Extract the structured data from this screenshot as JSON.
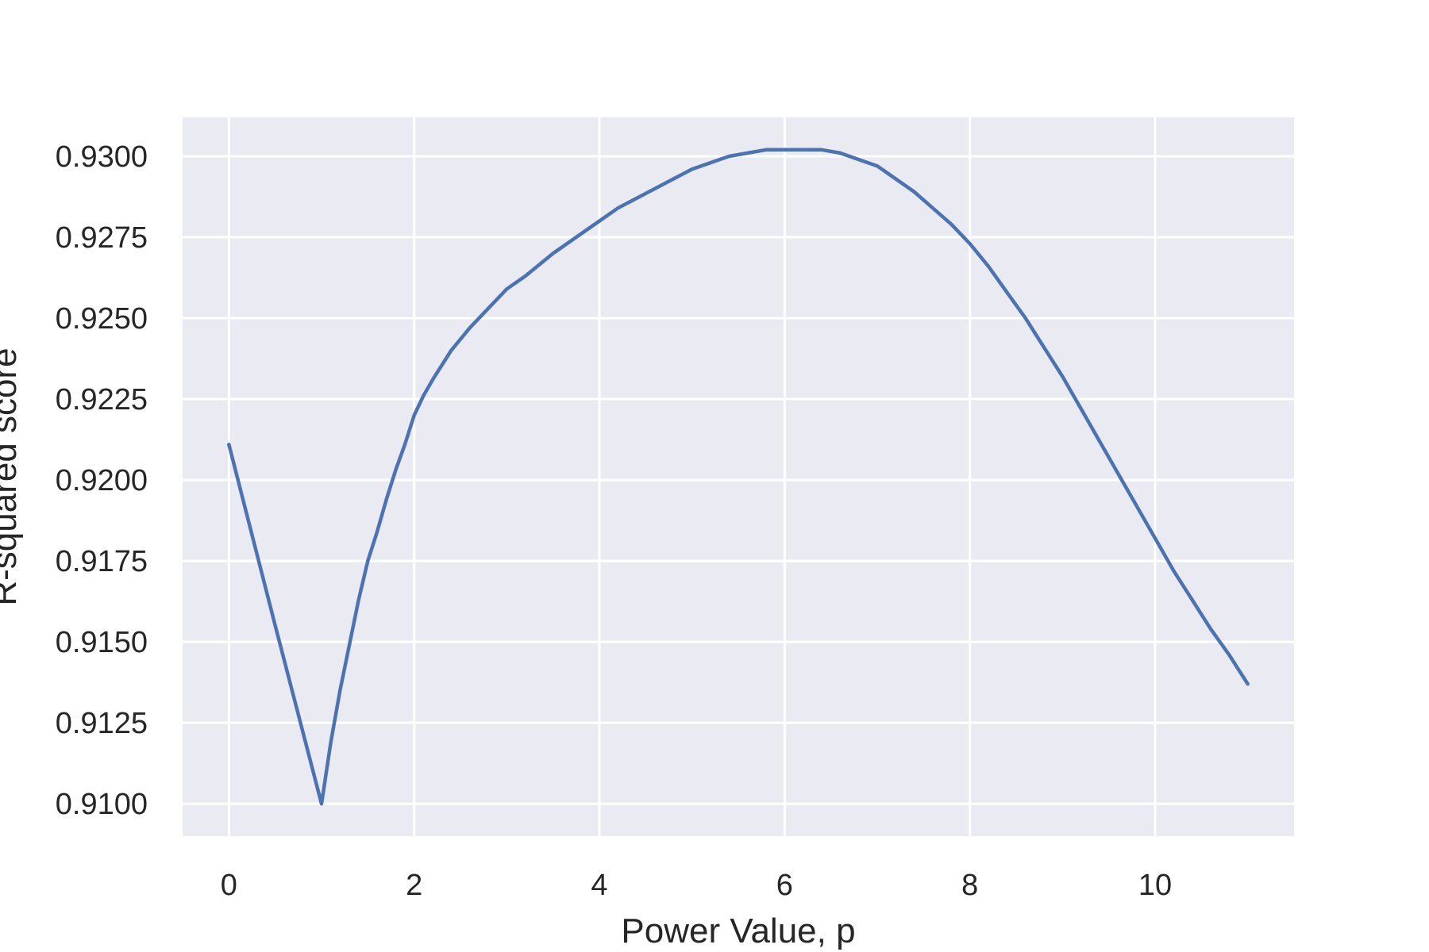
{
  "chart_data": {
    "type": "line",
    "title": "",
    "xlabel": "Power Value, p",
    "ylabel": "R-squared score",
    "xlim": [
      -0.5,
      11.5
    ],
    "ylim": [
      0.909,
      0.9312
    ],
    "xticks": [
      0,
      2,
      4,
      6,
      8,
      10
    ],
    "xtick_labels": [
      "0",
      "2",
      "4",
      "6",
      "8",
      "10"
    ],
    "yticks": [
      0.91,
      0.9125,
      0.915,
      0.9175,
      0.92,
      0.9225,
      0.925,
      0.9275,
      0.93
    ],
    "ytick_labels": [
      "0.9100",
      "0.9125",
      "0.9150",
      "0.9175",
      "0.9200",
      "0.9225",
      "0.9250",
      "0.9275",
      "0.9300"
    ],
    "grid": true,
    "background_color": "#eaeaf2",
    "line_color": "#4c72b0",
    "series": [
      {
        "x": [
          0,
          0.5,
          1,
          1.1,
          1.2,
          1.3,
          1.4,
          1.5,
          1.6,
          1.7,
          1.8,
          1.9,
          2,
          2.1,
          2.2,
          2.4,
          2.6,
          2.8,
          3,
          3.2,
          3.5,
          3.8,
          4,
          4.2,
          4.4,
          4.6,
          4.8,
          5,
          5.2,
          5.4,
          5.6,
          5.8,
          6,
          6.2,
          6.4,
          6.6,
          6.8,
          7,
          7.2,
          7.4,
          7.6,
          7.8,
          8,
          8.2,
          8.4,
          8.6,
          8.8,
          9,
          9.2,
          9.4,
          9.6,
          9.8,
          10,
          10.2,
          10.4,
          10.6,
          10.8,
          11
        ],
        "y": [
          0.9211,
          0.9155,
          0.91,
          0.9119,
          0.9135,
          0.9149,
          0.9163,
          0.9175,
          0.9184,
          0.9194,
          0.9203,
          0.9211,
          0.922,
          0.9226,
          0.9231,
          0.924,
          0.9247,
          0.9253,
          0.9259,
          0.9263,
          0.927,
          0.9276,
          0.928,
          0.9284,
          0.9287,
          0.929,
          0.9293,
          0.9296,
          0.9298,
          0.93,
          0.9301,
          0.9302,
          0.9302,
          0.9302,
          0.9302,
          0.9301,
          0.9299,
          0.9297,
          0.9293,
          0.9289,
          0.9284,
          0.9279,
          0.9273,
          0.9266,
          0.9258,
          0.925,
          0.9241,
          0.9232,
          0.9222,
          0.9212,
          0.9202,
          0.9192,
          0.9182,
          0.9172,
          0.9163,
          0.9154,
          0.9146,
          0.9137
        ]
      }
    ]
  }
}
